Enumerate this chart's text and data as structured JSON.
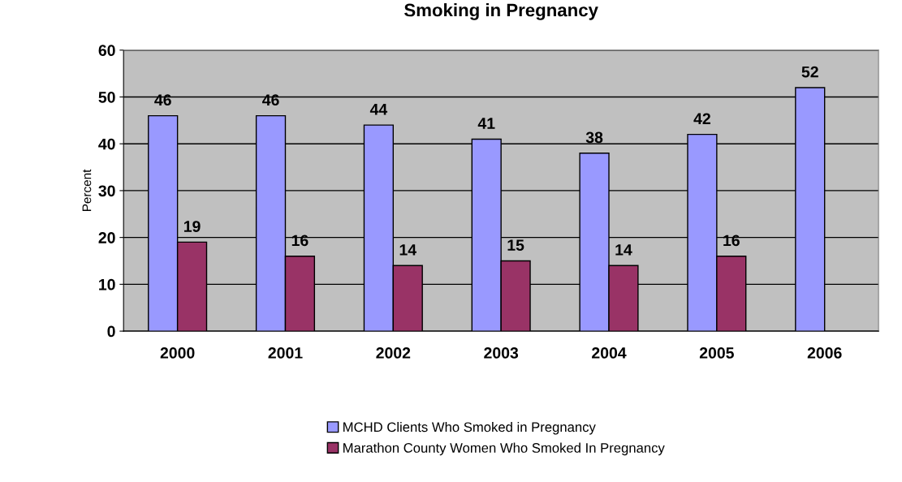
{
  "chart_data": {
    "type": "bar",
    "title": "Smoking in Pregnancy",
    "ylabel": "Percent",
    "categories": [
      "2000",
      "2001",
      "2002",
      "2003",
      "2004",
      "2005",
      "2006"
    ],
    "series": [
      {
        "name": "MCHD Clients Who Smoked in Pregnancy",
        "color": "#9999ff",
        "values": [
          46,
          46,
          44,
          41,
          38,
          42,
          52
        ]
      },
      {
        "name": "Marathon County Women Who Smoked In Pregnancy",
        "color": "#993366",
        "values": [
          19,
          16,
          14,
          15,
          14,
          16,
          null
        ]
      }
    ],
    "ylim": [
      0,
      60
    ],
    "yticks": [
      0,
      10,
      20,
      30,
      40,
      50,
      60
    ],
    "grid": "y",
    "legend": "bottom",
    "data_labels": true
  }
}
